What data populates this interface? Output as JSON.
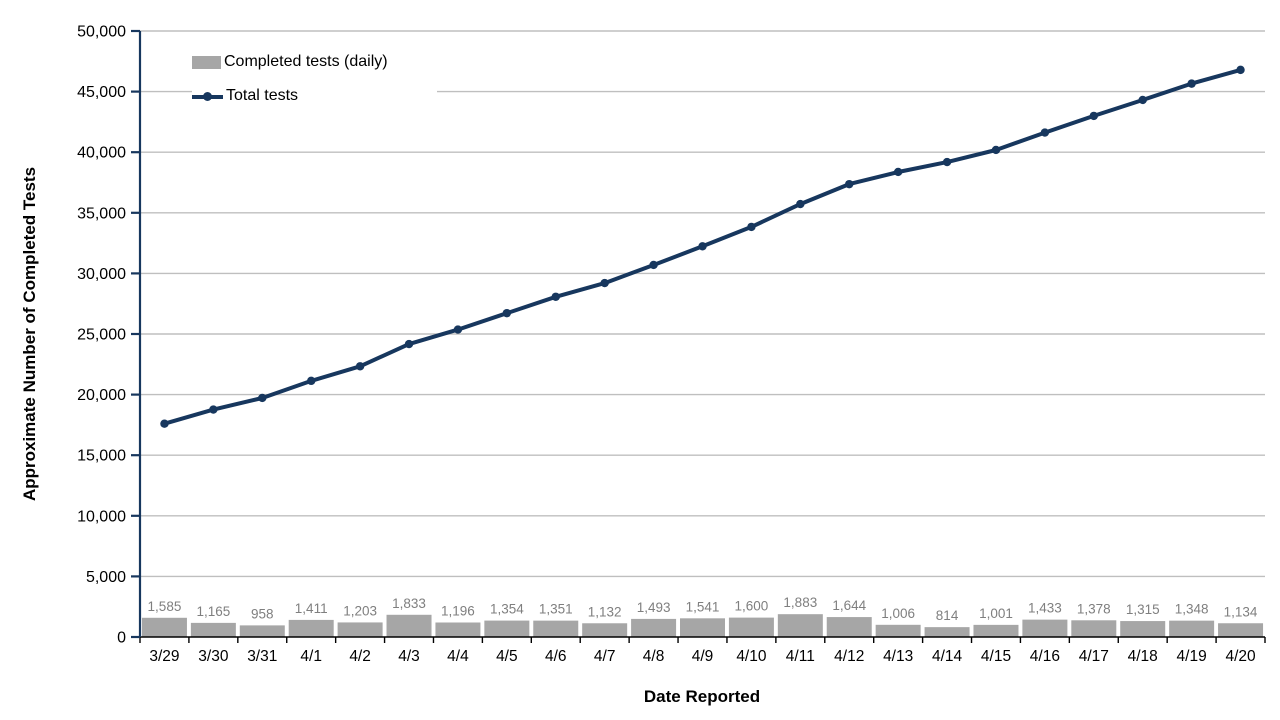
{
  "chart_data": {
    "type": "combo",
    "title": "",
    "xlabel": "Date Reported",
    "ylabel": "Approximate Number of Completed Tests",
    "categories": [
      "3/29",
      "3/30",
      "3/31",
      "4/1",
      "4/2",
      "4/3",
      "4/4",
      "4/5",
      "4/6",
      "4/7",
      "4/8",
      "4/9",
      "4/10",
      "4/11",
      "4/12",
      "4/13",
      "4/14",
      "4/15",
      "4/16",
      "4/17",
      "4/18",
      "4/19",
      "4/20"
    ],
    "series": [
      {
        "name": "Completed tests (daily)",
        "type": "bar",
        "color": "#A6A6A6",
        "values": [
          1585,
          1165,
          958,
          1411,
          1203,
          1833,
          1196,
          1354,
          1351,
          1132,
          1493,
          1541,
          1600,
          1883,
          1644,
          1006,
          814,
          1001,
          1433,
          1378,
          1315,
          1348,
          1134
        ],
        "labels": [
          "1,585",
          "1,165",
          "958",
          "1,411",
          "1,203",
          "1,833",
          "1,196",
          "1,354",
          "1,351",
          "1,132",
          "1,493",
          "1,541",
          "1,600",
          "1,883",
          "1,644",
          "1,006",
          "814",
          "1,001",
          "1,433",
          "1,378",
          "1,315",
          "1,348",
          "1,134"
        ]
      },
      {
        "name": "Total tests",
        "type": "line",
        "color": "#17375E",
        "values": [
          17600,
          18765,
          19723,
          21134,
          22337,
          24170,
          25366,
          26720,
          28071,
          29203,
          30696,
          32237,
          33837,
          35720,
          37364,
          38370,
          39184,
          40185,
          41618,
          42996,
          44311,
          45659,
          46793
        ]
      }
    ],
    "ylim": [
      0,
      50000
    ],
    "ytick_step": 5000,
    "ytick_labels": [
      "0",
      "5,000",
      "10,000",
      "15,000",
      "20,000",
      "25,000",
      "30,000",
      "35,000",
      "40,000",
      "45,000",
      "50,000"
    ],
    "grid": "horizontal",
    "legend_position": "top-left-inside",
    "colors": {
      "background": "#FFFFFF",
      "grid": "#BFBFBF",
      "x_axis": "#000000",
      "y_axis": "#17375E",
      "bar_fill": "#A6A6A6",
      "line": "#17375E",
      "bar_label": "#7F7F7F",
      "tick_label": "#000000"
    }
  }
}
